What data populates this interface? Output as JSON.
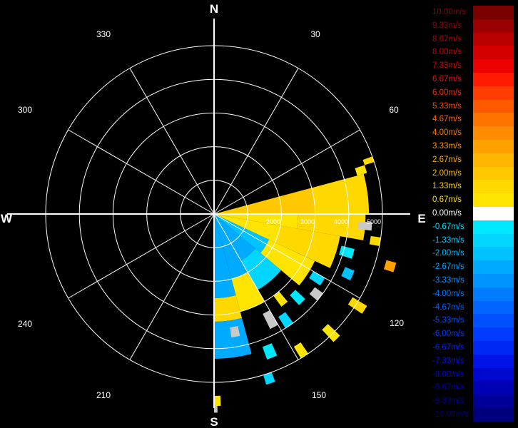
{
  "compass": {
    "north": "N",
    "south": "S",
    "east": "E",
    "west": "W"
  },
  "azimuth_labels": [
    "30",
    "60",
    "120",
    "150",
    "210",
    "240",
    "300",
    "330"
  ],
  "range_labels": [
    "2000",
    "3000",
    "4000",
    "5000"
  ],
  "legend": [
    {
      "label": "10.00m/s",
      "color": "#7a0000",
      "text_color": "#8a0000"
    },
    {
      "label": "9.33m/s",
      "color": "#9a0000",
      "text_color": "#a00000"
    },
    {
      "label": "8.67m/s",
      "color": "#b80000",
      "text_color": "#b80000"
    },
    {
      "label": "8.00m/s",
      "color": "#d40000",
      "text_color": "#cc0000"
    },
    {
      "label": "7.33m/s",
      "color": "#ee0000",
      "text_color": "#e00000"
    },
    {
      "label": "6.67m/s",
      "color": "#ff1a00",
      "text_color": "#f01010"
    },
    {
      "label": "6.00m/s",
      "color": "#ff3d00",
      "text_color": "#ff2800"
    },
    {
      "label": "5.33m/s",
      "color": "#ff5a00",
      "text_color": "#ff4800"
    },
    {
      "label": "4.67m/s",
      "color": "#ff7400",
      "text_color": "#ff6000"
    },
    {
      "label": "4.00m/s",
      "color": "#ff8c00",
      "text_color": "#ff7a00"
    },
    {
      "label": "3.33m/s",
      "color": "#ffa200",
      "text_color": "#ff9400"
    },
    {
      "label": "2.67m/s",
      "color": "#ffb600",
      "text_color": "#ffaa00"
    },
    {
      "label": "2.00m/s",
      "color": "#ffc800",
      "text_color": "#ffbe00"
    },
    {
      "label": "1.33m/s",
      "color": "#ffd800",
      "text_color": "#ffd000"
    },
    {
      "label": "0.67m/s",
      "color": "#ffe400",
      "text_color": "#ffdf00"
    },
    {
      "label": "0.00m/s",
      "color": "#ffffff",
      "text_color": "#ffffff"
    },
    {
      "label": "-0.67m/s",
      "color": "#00e8ff",
      "text_color": "#00e0ff"
    },
    {
      "label": "-1.33m/s",
      "color": "#00d6ff",
      "text_color": "#00ccff"
    },
    {
      "label": "-2.00m/s",
      "color": "#00c2ff",
      "text_color": "#00b8ff"
    },
    {
      "label": "-2.67m/s",
      "color": "#00aaff",
      "text_color": "#00a4ff"
    },
    {
      "label": "-3.33m/s",
      "color": "#0094ff",
      "text_color": "#0090ff"
    },
    {
      "label": "-4.00m/s",
      "color": "#007cff",
      "text_color": "#0078ff"
    },
    {
      "label": "-4.67m/s",
      "color": "#0066ff",
      "text_color": "#0060ff"
    },
    {
      "label": "-5.33m/s",
      "color": "#0050ff",
      "text_color": "#004cff"
    },
    {
      "label": "-6.00m/s",
      "color": "#003cff",
      "text_color": "#0038ff"
    },
    {
      "label": "-6.67m/s",
      "color": "#0028f5",
      "text_color": "#0024f0"
    },
    {
      "label": "-7.33m/s",
      "color": "#0014e8",
      "text_color": "#0014e0"
    },
    {
      "label": "-8.00m/s",
      "color": "#0008d0",
      "text_color": "#0008c8"
    },
    {
      "label": "-8.67m/s",
      "color": "#0000b4",
      "text_color": "#0000b0"
    },
    {
      "label": "-9.33m/s",
      "color": "#000098",
      "text_color": "#000098"
    },
    {
      "label": "-10.00m/s",
      "color": "#00007c",
      "text_color": "#000080"
    }
  ],
  "chart_data": {
    "type": "heatmap",
    "projection": "polar",
    "title": "",
    "unit": "m/s",
    "value_range": [
      -10.0,
      10.0
    ],
    "azimuth_ticks_deg": [
      30,
      60,
      120,
      150,
      210,
      240,
      300,
      330
    ],
    "range_ticks": [
      2000,
      3000,
      4000,
      5000
    ],
    "range_max": 5000,
    "grid": true,
    "nodata_color": "#c8c8c8",
    "sectors": [
      {
        "az": [
          75,
          90
        ],
        "range": [
          0,
          3000
        ],
        "value": 1.8
      },
      {
        "az": [
          75,
          90
        ],
        "range": [
          3000,
          4600
        ],
        "value": 1.3
      },
      {
        "az": [
          90,
          100
        ],
        "range": [
          0,
          2500
        ],
        "value": 1.0
      },
      {
        "az": [
          90,
          100
        ],
        "range": [
          2500,
          4500
        ],
        "value": 1.5
      },
      {
        "az": [
          100,
          115
        ],
        "range": [
          0,
          2000
        ],
        "value": 0.8
      },
      {
        "az": [
          100,
          115
        ],
        "range": [
          2000,
          3800
        ],
        "value": 1.2
      },
      {
        "az": [
          115,
          130
        ],
        "range": [
          0,
          1800
        ],
        "value": -2.0
      },
      {
        "az": [
          115,
          130
        ],
        "range": [
          1800,
          3300
        ],
        "value": 1.0
      },
      {
        "az": [
          130,
          150
        ],
        "range": [
          0,
          1600
        ],
        "value": -2.5
      },
      {
        "az": [
          130,
          150
        ],
        "range": [
          1600,
          2600
        ],
        "value": -1.6
      },
      {
        "az": [
          150,
          165
        ],
        "range": [
          0,
          2000
        ],
        "value": -2.6
      },
      {
        "az": [
          150,
          165
        ],
        "range": [
          2000,
          3000
        ],
        "value": 0.9
      },
      {
        "az": [
          165,
          180
        ],
        "range": [
          0,
          2500
        ],
        "value": -2.4
      },
      {
        "az": [
          165,
          180
        ],
        "range": [
          2500,
          3200
        ],
        "value": 1.2
      },
      {
        "az": [
          165,
          180
        ],
        "range": [
          3200,
          4300
        ],
        "value": -2.8
      },
      {
        "az": [
          93,
          96
        ],
        "range": [
          4300,
          4700
        ],
        "value": 0
      },
      {
        "az": [
          104,
          108
        ],
        "range": [
          3900,
          4300
        ],
        "value": -1.0
      },
      {
        "az": [
          112,
          116
        ],
        "range": [
          4200,
          4500
        ],
        "value": -2.0
      },
      {
        "az": [
          120,
          124
        ],
        "range": [
          3400,
          3800
        ],
        "value": -1.2
      },
      {
        "az": [
          126,
          130
        ],
        "range": [
          3700,
          4000
        ],
        "value": 0
      },
      {
        "az": [
          133,
          137
        ],
        "range": [
          3300,
          3700
        ],
        "value": -1.0
      },
      {
        "az": [
          140,
          144
        ],
        "range": [
          3000,
          3400
        ],
        "value": 0.8
      },
      {
        "az": [
          144,
          148
        ],
        "range": [
          3600,
          4000
        ],
        "value": -1.6
      },
      {
        "az": [
          150,
          154
        ],
        "range": [
          3300,
          3800
        ],
        "value": 0
      },
      {
        "az": [
          156,
          160
        ],
        "range": [
          4200,
          4600
        ],
        "value": -1.0
      },
      {
        "az": [
          168,
          172
        ],
        "range": [
          3400,
          3700
        ],
        "value": 0
      },
      {
        "az": [
          72,
          75
        ],
        "range": [
          4400,
          4700
        ],
        "value": 1.0
      },
      {
        "az": [
          70,
          72
        ],
        "range": [
          4700,
          5000
        ],
        "value": 1.6
      },
      {
        "az": [
          98,
          101
        ],
        "range": [
          4700,
          5000
        ],
        "value": 1.2
      },
      {
        "az": [
          105,
          108
        ],
        "range": [
          5300,
          5600
        ],
        "value": 3.2
      },
      {
        "az": [
          121,
          124
        ],
        "range": [
          4800,
          5300
        ],
        "value": 1.4
      },
      {
        "az": [
          134,
          137
        ],
        "range": [
          4700,
          5200
        ],
        "value": 0.8
      },
      {
        "az": [
          146,
          149
        ],
        "range": [
          4600,
          5000
        ],
        "value": 1.0
      },
      {
        "az": [
          160,
          163
        ],
        "range": [
          5000,
          5300
        ],
        "value": -1.2
      },
      {
        "az": [
          178,
          180
        ],
        "range": [
          5400,
          5700
        ],
        "value": 1.0
      },
      {
        "az": [
          179,
          180
        ],
        "range": [
          5700,
          5900
        ],
        "value": 0
      }
    ]
  }
}
